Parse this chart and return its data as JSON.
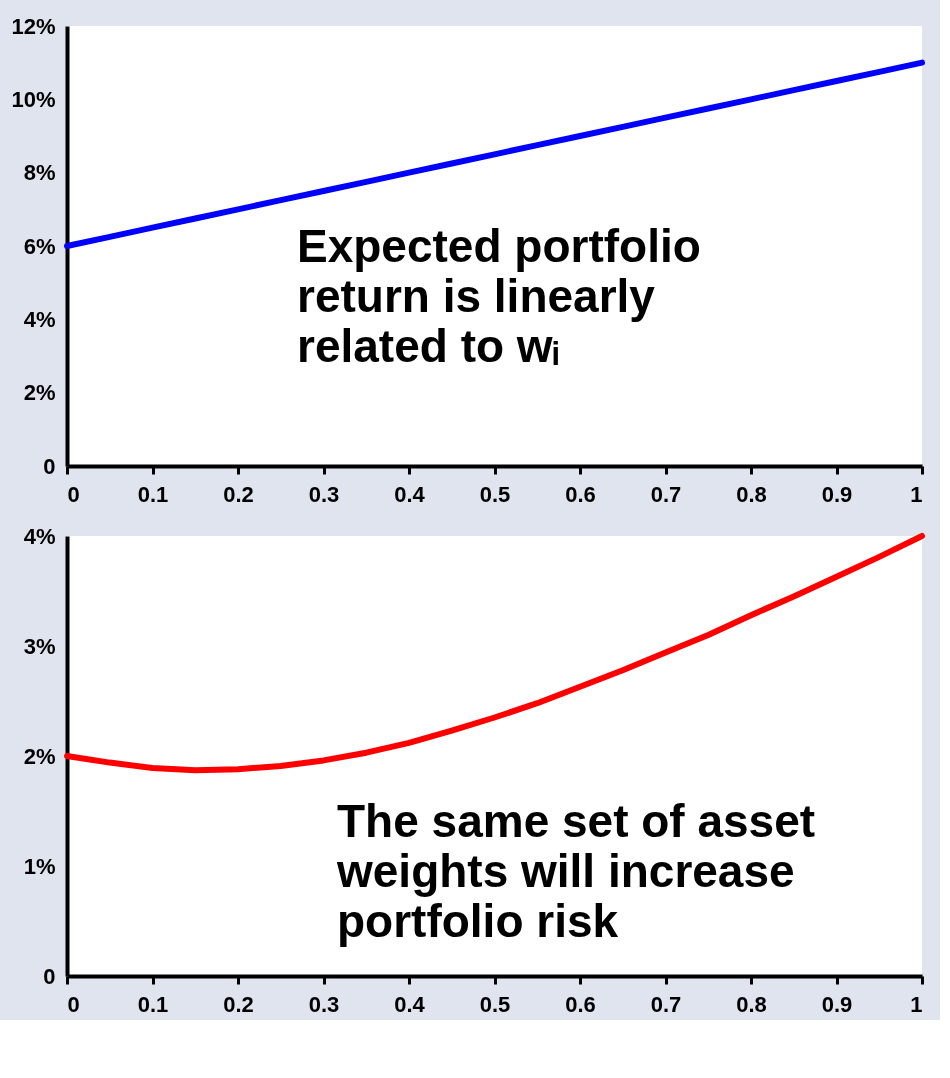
{
  "chart_data": [
    {
      "type": "line",
      "x": [
        0,
        0.05,
        0.1,
        0.15,
        0.2,
        0.25,
        0.3,
        0.35,
        0.4,
        0.45,
        0.5,
        0.55,
        0.6,
        0.65,
        0.7,
        0.75,
        0.8,
        0.85,
        0.9,
        0.95,
        1
      ],
      "series": [
        {
          "color": "#0000ff",
          "values": [
            6.0,
            6.25,
            6.5,
            6.75,
            7.0,
            7.25,
            7.5,
            7.75,
            8.0,
            8.25,
            8.5,
            8.75,
            9.0,
            9.25,
            9.5,
            9.75,
            10.0,
            10.25,
            10.5,
            10.75,
            11.0
          ]
        }
      ],
      "xlim": [
        0,
        1
      ],
      "xticks": [
        0,
        0.1,
        0.2,
        0.3,
        0.4,
        0.5,
        0.6,
        0.7,
        0.8,
        0.9,
        1
      ],
      "ylim": [
        0,
        12
      ],
      "yticks": [
        {
          "value": 0,
          "label": "0"
        },
        {
          "value": 2,
          "label": "2%"
        },
        {
          "value": 4,
          "label": "4%"
        },
        {
          "value": 6,
          "label": "6%"
        },
        {
          "value": 8,
          "label": "8%"
        },
        {
          "value": 10,
          "label": "10%"
        },
        {
          "value": 12,
          "label": "12%"
        }
      ],
      "annotations": [
        "Expected portfolio return is linearly related to wᵢ"
      ],
      "grid": false,
      "legend": false
    },
    {
      "type": "line",
      "x": [
        0,
        0.05,
        0.1,
        0.15,
        0.2,
        0.25,
        0.3,
        0.35,
        0.4,
        0.45,
        0.5,
        0.55,
        0.6,
        0.65,
        0.7,
        0.75,
        0.8,
        0.85,
        0.9,
        0.95,
        1
      ],
      "series": [
        {
          "color": "#ff0000",
          "values": [
            2.0,
            1.94,
            1.89,
            1.87,
            1.88,
            1.91,
            1.96,
            2.03,
            2.12,
            2.23,
            2.35,
            2.48,
            2.63,
            2.78,
            2.94,
            3.1,
            3.28,
            3.45,
            3.63,
            3.81,
            4.0
          ]
        }
      ],
      "xlim": [
        0,
        1
      ],
      "xticks": [
        0,
        0.1,
        0.2,
        0.3,
        0.4,
        0.5,
        0.6,
        0.7,
        0.8,
        0.9,
        1
      ],
      "ylim": [
        0,
        4
      ],
      "yticks": [
        {
          "value": 0,
          "label": "0"
        },
        {
          "value": 1,
          "label": "1%"
        },
        {
          "value": 2,
          "label": "2%"
        },
        {
          "value": 3,
          "label": "3%"
        },
        {
          "value": 4,
          "label": "4%"
        }
      ],
      "annotations": [
        "The same set of asset weights will increase portfolio risk"
      ],
      "grid": false,
      "legend": false
    }
  ]
}
